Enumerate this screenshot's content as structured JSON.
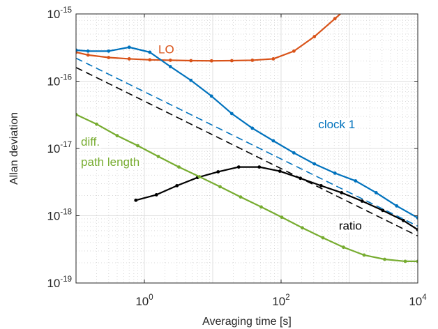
{
  "chart_data": {
    "type": "line",
    "xscale": "log",
    "yscale": "log",
    "xlabel": "Averaging time [s]",
    "ylabel": "Allan deviation",
    "xlim": [
      0.1,
      10000
    ],
    "ylim": [
      1e-19,
      1e-15
    ],
    "grid": true,
    "x_ticks": [
      {
        "base": "10",
        "exp": "0",
        "value": 1
      },
      {
        "base": "10",
        "exp": "2",
        "value": 100
      },
      {
        "base": "10",
        "exp": "4",
        "value": 10000
      }
    ],
    "y_ticks": [
      {
        "base": "10",
        "exp": "-15",
        "value": 1e-15
      },
      {
        "base": "10",
        "exp": "-16",
        "value": 1e-16
      },
      {
        "base": "10",
        "exp": "-17",
        "value": 1e-17
      },
      {
        "base": "10",
        "exp": "-18",
        "value": 1e-18
      },
      {
        "base": "10",
        "exp": "-19",
        "value": 1e-19
      }
    ],
    "annotations": [
      {
        "text": "LO",
        "color": "#d95319",
        "x": 1.6,
        "y": 2.6e-16
      },
      {
        "text": "clock 1",
        "color": "#0072bd",
        "x": 350,
        "y": 2e-17
      },
      {
        "text": "diff.",
        "color": "#77ac30",
        "x": 0.118,
        "y": 1.1e-17
      },
      {
        "text": "path length",
        "color": "#77ac30",
        "x": 0.118,
        "y": 5.5e-18
      },
      {
        "text": "ratio",
        "color": "#000000",
        "x": 700,
        "y": 6.2e-19
      }
    ],
    "series": [
      {
        "color": "#d95319",
        "style": "solid",
        "markers": true,
        "points": [
          [
            0.1,
            2.7e-16
          ],
          [
            0.15,
            2.45e-16
          ],
          [
            0.3,
            2.25e-16
          ],
          [
            0.6,
            2.15e-16
          ],
          [
            1.2,
            2.08e-16
          ],
          [
            2.4,
            2.05e-16
          ],
          [
            4.8,
            2.02e-16
          ],
          [
            9.6,
            2.01e-16
          ],
          [
            19,
            2.02e-16
          ],
          [
            38,
            2.05e-16
          ],
          [
            77,
            2.15e-16
          ],
          [
            154,
            2.8e-16
          ],
          [
            307,
            4.6e-16
          ],
          [
            614,
            8.5e-16
          ],
          [
            900,
            1.2e-15
          ]
        ]
      },
      {
        "color": "#0072bd",
        "style": "solid",
        "markers": true,
        "points": [
          [
            0.1,
            2.9e-16
          ],
          [
            0.15,
            2.8e-16
          ],
          [
            0.3,
            2.8e-16
          ],
          [
            0.6,
            3.2e-16
          ],
          [
            1.2,
            2.7e-16
          ],
          [
            2.4,
            1.65e-16
          ],
          [
            4.8,
            1.03e-16
          ],
          [
            9.6,
            6e-17
          ],
          [
            19,
            3.3e-17
          ],
          [
            38,
            2e-17
          ],
          [
            77,
            1.3e-17
          ],
          [
            154,
            8.6e-18
          ],
          [
            307,
            5.9e-18
          ],
          [
            614,
            4.3e-18
          ],
          [
            1229,
            3.3e-18
          ],
          [
            2458,
            2.2e-18
          ],
          [
            4916,
            1.4e-18
          ],
          [
            10000,
            9.3e-19
          ]
        ]
      },
      {
        "color": "#000000",
        "style": "solid",
        "markers": true,
        "points": [
          [
            0.75,
            1.7e-18
          ],
          [
            1.5,
            2.05e-18
          ],
          [
            3,
            2.8e-18
          ],
          [
            6,
            3.7e-18
          ],
          [
            12,
            4.5e-18
          ],
          [
            24,
            5.3e-18
          ],
          [
            48,
            5.3e-18
          ],
          [
            96,
            4.6e-18
          ],
          [
            192,
            3.6e-18
          ],
          [
            384,
            2.8e-18
          ],
          [
            768,
            2.2e-18
          ],
          [
            1536,
            1.65e-18
          ],
          [
            3072,
            1.2e-18
          ],
          [
            6144,
            8.5e-19
          ],
          [
            10000,
            6.2e-19
          ]
        ]
      },
      {
        "color": "#77ac30",
        "style": "solid",
        "markers": true,
        "points": [
          [
            0.1,
            3.2e-17
          ],
          [
            0.2,
            2.3e-17
          ],
          [
            0.4,
            1.55e-17
          ],
          [
            0.8,
            1.1e-17
          ],
          [
            1.6,
            7.6e-18
          ],
          [
            3.2,
            5.3e-18
          ],
          [
            6.4,
            3.8e-18
          ],
          [
            12.8,
            2.7e-18
          ],
          [
            25.6,
            1.9e-18
          ],
          [
            51.2,
            1.35e-18
          ],
          [
            102.4,
            9.5e-19
          ],
          [
            204.8,
            6.6e-19
          ],
          [
            409.6,
            4.7e-19
          ],
          [
            819.2,
            3.4e-19
          ],
          [
            1638.4,
            2.6e-19
          ],
          [
            3276.8,
            2.25e-19
          ],
          [
            6553.6,
            2.1e-19
          ],
          [
            10000,
            2.1e-19
          ]
        ]
      },
      {
        "color": "#0072bd",
        "style": "dashed",
        "markers": false,
        "points": [
          [
            0.1,
            2.2e-16
          ],
          [
            10000,
            7e-19
          ]
        ]
      },
      {
        "color": "#000000",
        "style": "dashed",
        "markers": false,
        "points": [
          [
            0.1,
            1.6e-16
          ],
          [
            10000,
            5e-19
          ]
        ]
      }
    ]
  }
}
